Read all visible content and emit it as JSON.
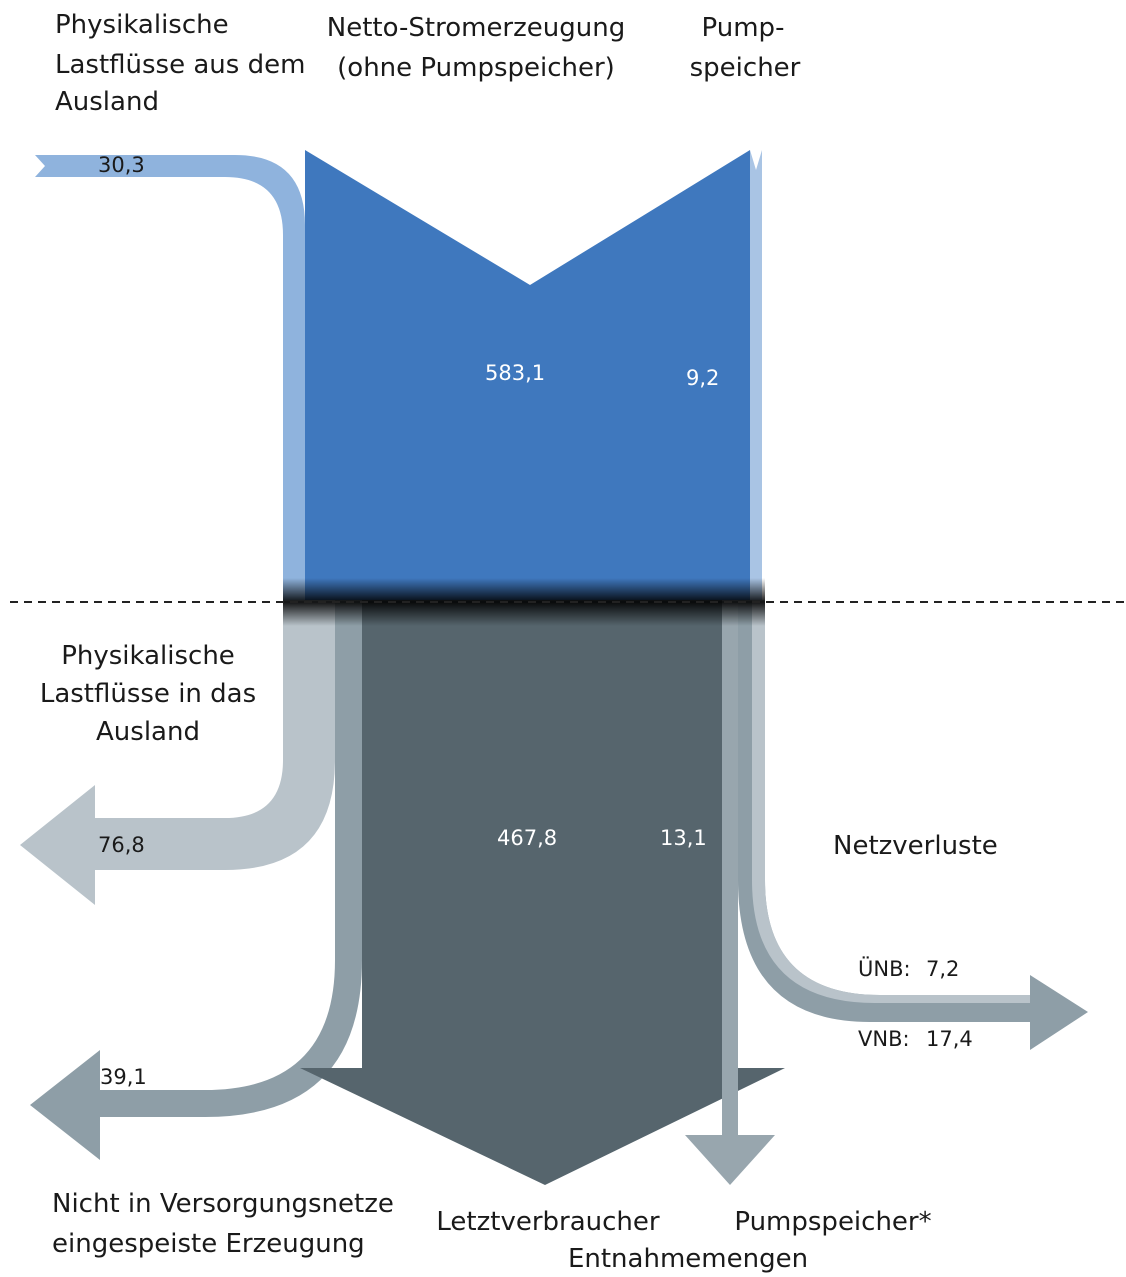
{
  "inflows": {
    "import": {
      "lines": [
        "Physikalische",
        "Lastflüsse aus dem",
        "Ausland"
      ],
      "value": "30,3"
    },
    "generation": {
      "lines": [
        "Netto-Stromerzeugung",
        "(ohne Pumpspeicher)"
      ],
      "value": "583,1"
    },
    "pump_storage": {
      "lines": [
        "Pump-",
        "speicher"
      ],
      "value": "9,2"
    }
  },
  "outflows": {
    "export": {
      "lines": [
        "Physikalische",
        "Lastflüsse in das",
        "Ausland"
      ],
      "value": "76,8"
    },
    "own_generation": {
      "lines": [
        "Nicht in Versorgungsnetze",
        "eingespeiste Erzeugung"
      ],
      "value": "39,1"
    },
    "consumers": {
      "label": "Letztverbraucher",
      "value": "467,8"
    },
    "pump_storage": {
      "label": "Pumpspeicher*",
      "value": "13,1"
    },
    "withdrawals_label": "Entnahmemengen",
    "grid_losses": {
      "label": "Netzverluste",
      "items": [
        {
          "label": "ÜNB:",
          "value": "7,2"
        },
        {
          "label": "VNB:",
          "value": "17,4"
        }
      ]
    }
  }
}
